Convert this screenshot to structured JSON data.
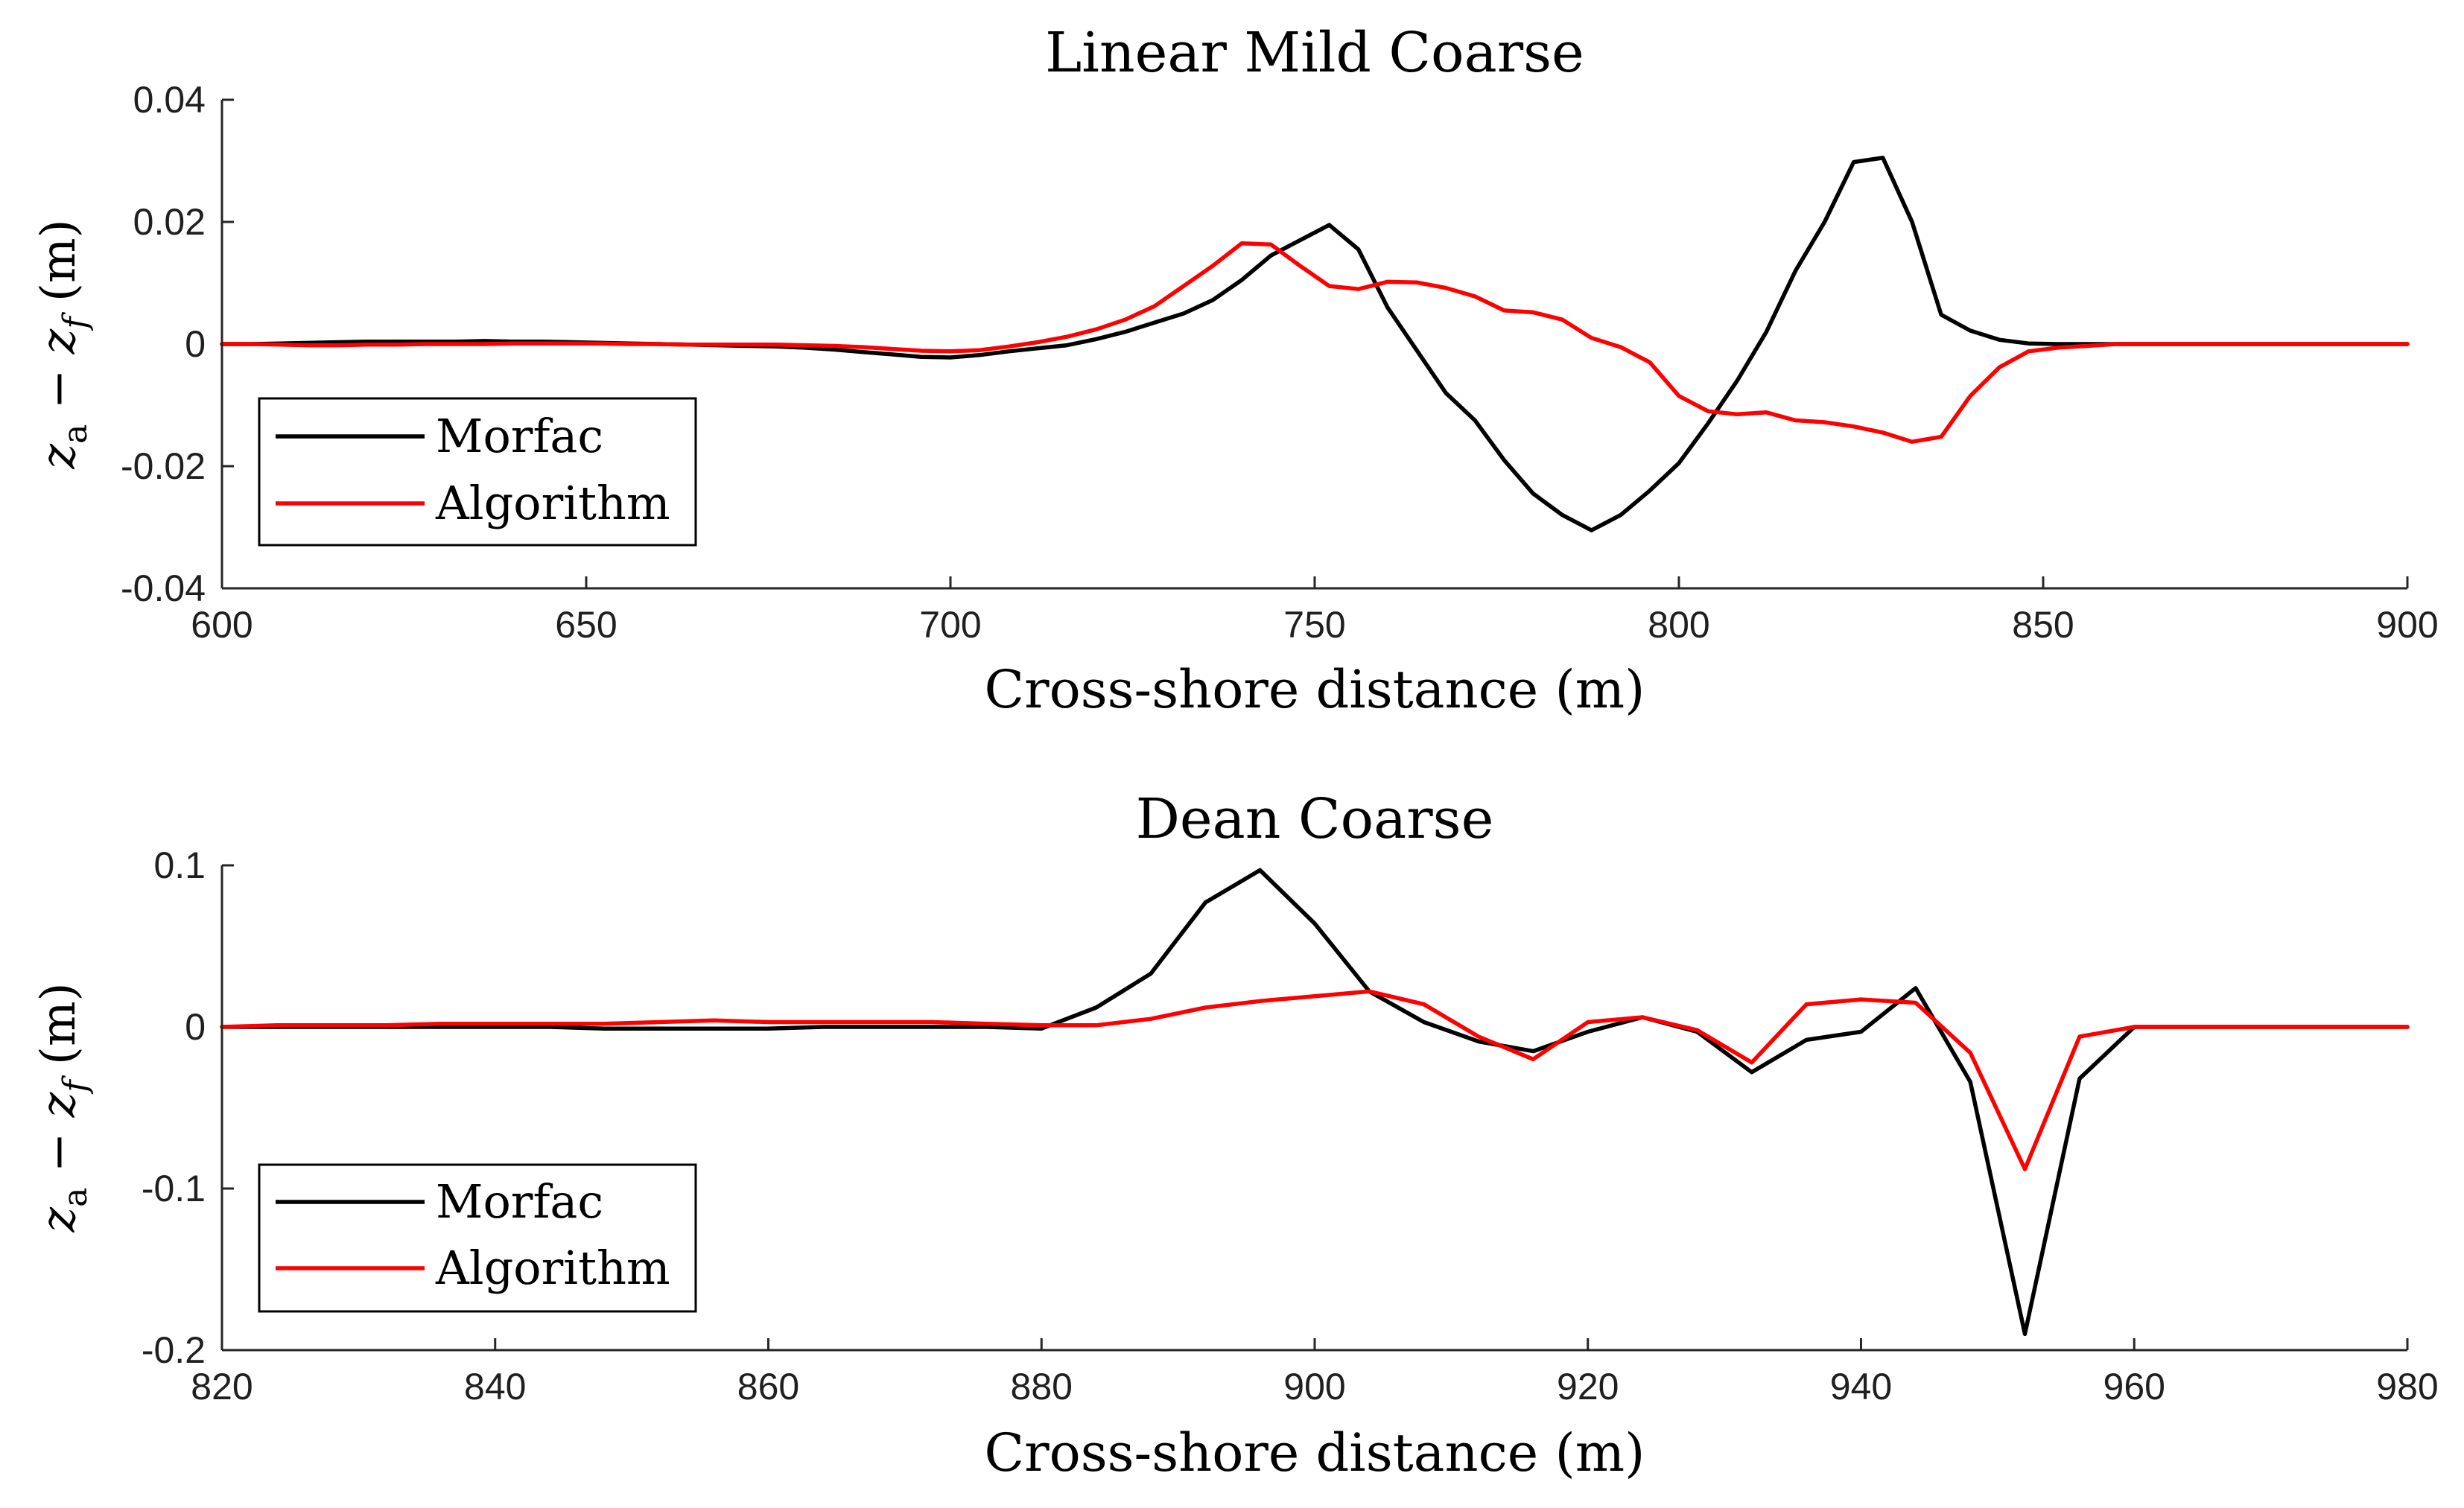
{
  "colors": {
    "morfac": "#000000",
    "algorithm": "#ff0000",
    "axis": "#262626",
    "background": "#ffffff"
  },
  "chart_data": [
    {
      "type": "line",
      "title": "Linear Mild Coarse",
      "xlabel": "Cross-shore distance (m)",
      "ylabel": {
        "var_a": "z",
        "sub_a": "a",
        "op": " − ",
        "var_f": "z",
        "sub_f": "f",
        "unit": " (m)"
      },
      "xlim": [
        600,
        900
      ],
      "ylim": [
        -0.04,
        0.04
      ],
      "xticks": [
        "600",
        "650",
        "700",
        "750",
        "800",
        "850",
        "900"
      ],
      "yticks": [
        "-0.04",
        "-0.02",
        "0",
        "0.02",
        "0.04"
      ],
      "legend": {
        "position": "bottom-left",
        "entries": [
          "Morfac",
          "Algorithm"
        ]
      },
      "series": [
        {
          "name": "Morfac",
          "color": "#000000",
          "x": [
            600,
            604,
            608,
            612,
            616,
            620,
            624,
            628,
            632,
            636,
            640,
            644,
            648,
            652,
            656,
            660,
            664,
            668,
            672,
            676,
            680,
            684,
            688,
            692,
            696,
            700,
            704,
            708,
            712,
            716,
            720,
            724,
            728,
            732,
            736,
            740,
            744,
            748,
            752,
            756,
            760,
            764,
            768,
            772,
            776,
            780,
            784,
            788,
            792,
            796,
            800,
            804,
            808,
            812,
            816,
            820,
            824,
            828,
            832,
            836,
            840,
            844,
            848,
            852,
            856,
            860,
            864,
            868,
            872,
            876,
            880,
            884,
            888,
            892,
            896,
            900
          ],
          "values": [
            0,
            0,
            0.0001,
            0.0002,
            0.0003,
            0.0004,
            0.0004,
            0.0004,
            0.0004,
            0.0005,
            0.0004,
            0.0004,
            0.0003,
            0.0002,
            0.0001,
            0,
            -0.0001,
            -0.0002,
            -0.0003,
            -0.0004,
            -0.0006,
            -0.0009,
            -0.0013,
            -0.0017,
            -0.0021,
            -0.0022,
            -0.0018,
            -0.0012,
            -0.0007,
            -0.0002,
            0.0008,
            0.002,
            0.0035,
            0.005,
            0.0072,
            0.0105,
            0.0145,
            0.017,
            0.0195,
            0.0155,
            0.006,
            -0.001,
            -0.008,
            -0.0125,
            -0.019,
            -0.0245,
            -0.028,
            -0.0305,
            -0.028,
            -0.024,
            -0.0195,
            -0.013,
            -0.006,
            0.002,
            0.012,
            0.02,
            0.0298,
            0.0305,
            0.02,
            0.0048,
            0.0022,
            0.0007,
            0.0001,
            0,
            0,
            0,
            0,
            0,
            0,
            0,
            0,
            0,
            0,
            0,
            0,
            0
          ]
        },
        {
          "name": "Algorithm",
          "color": "#ff0000",
          "x": [
            600,
            604,
            608,
            612,
            616,
            620,
            624,
            628,
            632,
            636,
            640,
            644,
            648,
            652,
            656,
            660,
            664,
            668,
            672,
            676,
            680,
            684,
            688,
            692,
            696,
            700,
            704,
            708,
            712,
            716,
            720,
            724,
            728,
            732,
            736,
            740,
            744,
            748,
            752,
            756,
            760,
            764,
            768,
            772,
            776,
            780,
            784,
            788,
            792,
            796,
            800,
            804,
            808,
            812,
            816,
            820,
            824,
            828,
            832,
            836,
            840,
            844,
            848,
            852,
            856,
            860,
            864,
            868,
            872,
            876,
            880,
            884,
            888,
            892,
            896,
            900
          ],
          "values": [
            0,
            0,
            -0.0001,
            -0.0002,
            -0.0002,
            -0.0001,
            -0.0001,
            0,
            0,
            0,
            0.0001,
            0.0001,
            0.0001,
            0.0001,
            0,
            0,
            -0.0001,
            -0.0001,
            -0.0001,
            -0.0001,
            -0.0002,
            -0.0003,
            -0.0005,
            -0.0008,
            -0.0011,
            -0.0012,
            -0.001,
            -0.0004,
            0.0003,
            0.0012,
            0.0024,
            0.004,
            0.0062,
            0.0095,
            0.0128,
            0.0165,
            0.0163,
            0.0128,
            0.0095,
            0.009,
            0.0102,
            0.0101,
            0.0092,
            0.0078,
            0.0055,
            0.0052,
            0.004,
            0.001,
            -0.0005,
            -0.003,
            -0.0085,
            -0.011,
            -0.0115,
            -0.0112,
            -0.0125,
            -0.0128,
            -0.0135,
            -0.0145,
            -0.016,
            -0.0152,
            -0.0085,
            -0.0038,
            -0.0012,
            -0.0006,
            -0.0003,
            0,
            0,
            0,
            0,
            0,
            0,
            0,
            0,
            0,
            0,
            0
          ]
        }
      ]
    },
    {
      "type": "line",
      "title": "Dean Coarse",
      "xlabel": "Cross-shore distance (m)",
      "ylabel": {
        "var_a": "z",
        "sub_a": "a",
        "op": " − ",
        "var_f": "z",
        "sub_f": "f",
        "unit": " (m)"
      },
      "xlim": [
        820,
        980
      ],
      "ylim": [
        -0.2,
        0.1
      ],
      "xticks": [
        "820",
        "840",
        "860",
        "880",
        "900",
        "920",
        "940",
        "960",
        "980"
      ],
      "yticks": [
        "-0.2",
        "-0.1",
        "0",
        "0.1"
      ],
      "legend": {
        "position": "bottom-left",
        "entries": [
          "Morfac",
          "Algorithm"
        ]
      },
      "series": [
        {
          "name": "Morfac",
          "color": "#000000",
          "x": [
            820,
            824,
            828,
            832,
            836,
            840,
            844,
            848,
            852,
            856,
            860,
            864,
            868,
            872,
            876,
            880,
            884,
            888,
            892,
            896,
            900,
            904,
            908,
            912,
            916,
            920,
            924,
            928,
            932,
            936,
            940,
            944,
            948,
            952,
            956,
            960,
            964,
            968,
            972,
            976,
            980
          ],
          "values": [
            0,
            0,
            0,
            0,
            0,
            0,
            0,
            -0.001,
            -0.001,
            -0.001,
            -0.001,
            0,
            0,
            0,
            0,
            -0.001,
            0.012,
            0.033,
            0.077,
            0.097,
            0.064,
            0.022,
            0.003,
            -0.009,
            -0.015,
            -0.003,
            0.006,
            -0.003,
            -0.028,
            -0.008,
            -0.003,
            0.024,
            -0.034,
            -0.19,
            -0.032,
            0,
            0,
            0,
            0,
            0,
            0
          ]
        },
        {
          "name": "Algorithm",
          "color": "#ff0000",
          "x": [
            820,
            824,
            828,
            832,
            836,
            840,
            844,
            848,
            852,
            856,
            860,
            864,
            868,
            872,
            876,
            880,
            884,
            888,
            892,
            896,
            900,
            904,
            908,
            912,
            916,
            920,
            924,
            928,
            932,
            936,
            940,
            944,
            948,
            952,
            956,
            960,
            964,
            968,
            972,
            976,
            980
          ],
          "values": [
            0,
            0.001,
            0.001,
            0.001,
            0.002,
            0.002,
            0.002,
            0.002,
            0.003,
            0.004,
            0.003,
            0.003,
            0.003,
            0.003,
            0.002,
            0.001,
            0.001,
            0.005,
            0.012,
            0.016,
            0.019,
            0.022,
            0.014,
            -0.006,
            -0.02,
            0.003,
            0.006,
            -0.002,
            -0.022,
            0.014,
            0.017,
            0.015,
            -0.016,
            -0.088,
            -0.006,
            0,
            0,
            0,
            0,
            0,
            0
          ]
        }
      ]
    }
  ]
}
